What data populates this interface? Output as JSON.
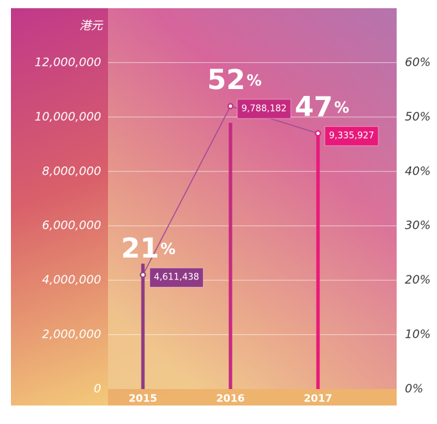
{
  "chart_data": {
    "type": "bar",
    "ylabel": "港元",
    "categories": [
      "2015",
      "2016",
      "2017"
    ],
    "values": [
      4611438,
      9788182,
      9335927
    ],
    "value_labels": [
      "4,611,438",
      "9,788,182",
      "9,335,927"
    ],
    "colors": [
      "#8e3a86",
      "#c42a80",
      "#e8197a"
    ],
    "ylim": [
      0,
      14000000
    ],
    "yticks": [
      0,
      {
        "value": 2000000,
        "label": "2,000,000"
      },
      {
        "value": 4000000,
        "label": "4,000,000"
      },
      {
        "value": 6000000,
        "label": "6,000,000"
      },
      {
        "value": 8000000,
        "label": "8,000,000"
      },
      {
        "value": 10000000,
        "label": "10,000,000"
      },
      {
        "value": 12000000,
        "label": "12,000,000"
      }
    ],
    "y2lim": [
      0,
      70
    ],
    "y2ticks": [
      {
        "value": 0,
        "label": "0%"
      },
      {
        "value": 10,
        "label": "10%"
      },
      {
        "value": 20,
        "label": "20%"
      },
      {
        "value": 30,
        "label": "30%"
      },
      {
        "value": 40,
        "label": "40%"
      },
      {
        "value": 50,
        "label": "50%"
      },
      {
        "value": 60,
        "label": "60%"
      }
    ],
    "series": [
      {
        "values": [
          21,
          52,
          47
        ],
        "unit": "%",
        "axis": "y2",
        "color": "#a24a96"
      }
    ],
    "grid": true
  }
}
